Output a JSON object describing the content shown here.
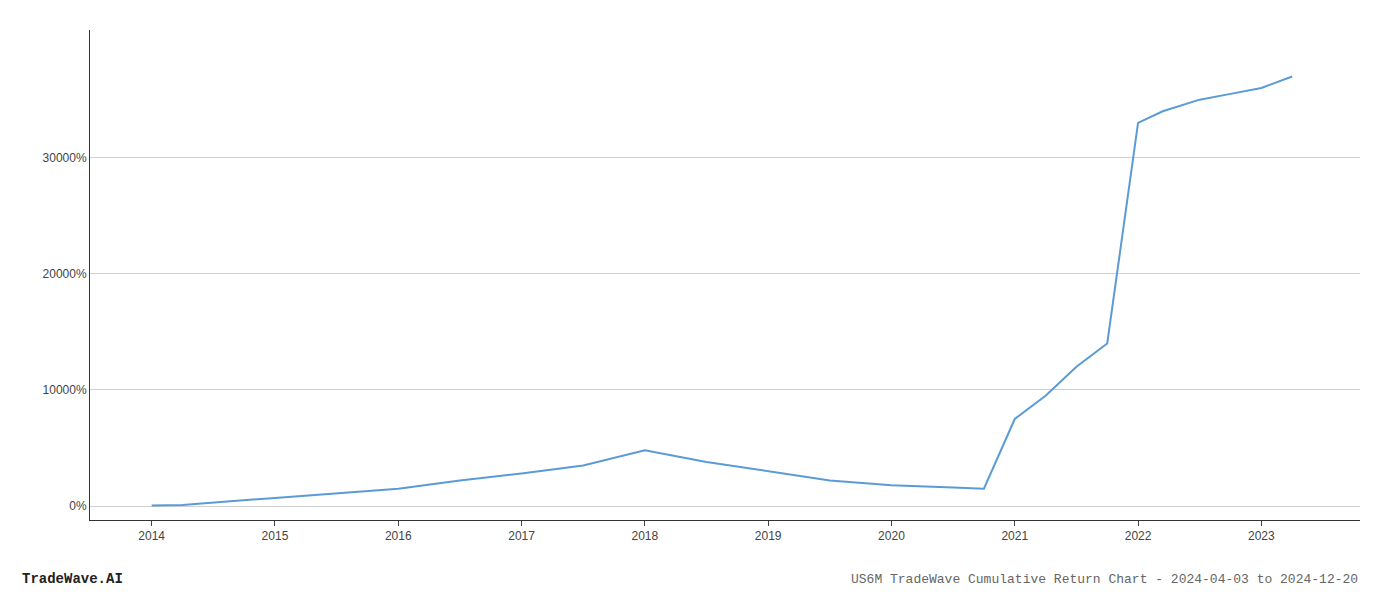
{
  "chart_data": {
    "type": "line",
    "title": "US6M TradeWave Cumulative Return Chart - 2024-04-03 to 2024-12-20",
    "annotations": [
      "TradeWave.AI"
    ],
    "x": [
      2014.0,
      2014.25,
      2015.0,
      2015.5,
      2016.0,
      2016.5,
      2017.0,
      2017.5,
      2018.0,
      2018.5,
      2019.0,
      2019.5,
      2020.0,
      2020.2,
      2020.5,
      2020.75,
      2021.0,
      2021.25,
      2021.5,
      2021.75,
      2022.0,
      2022.2,
      2022.5,
      2022.75,
      2023.0,
      2023.25
    ],
    "values": [
      50,
      100,
      700,
      1100,
      1500,
      2200,
      2800,
      3500,
      4800,
      3800,
      3000,
      2200,
      1800,
      1700,
      1600,
      1500,
      7500,
      9500,
      12000,
      14000,
      33000,
      34000,
      35000,
      35500,
      36000,
      37000
    ],
    "color": "#5b9bd5",
    "xlim": [
      2013.5,
      2023.8
    ],
    "ylim": [
      -1200,
      41000
    ],
    "xticks": [
      2014,
      2015,
      2016,
      2017,
      2018,
      2019,
      2020,
      2021,
      2022,
      2023
    ],
    "yticks": [
      {
        "value": 0,
        "label": "0%"
      },
      {
        "value": 10000,
        "label": "10000%"
      },
      {
        "value": 20000,
        "label": "20000%"
      },
      {
        "value": 30000,
        "label": "30000%"
      }
    ],
    "grid": "y"
  }
}
